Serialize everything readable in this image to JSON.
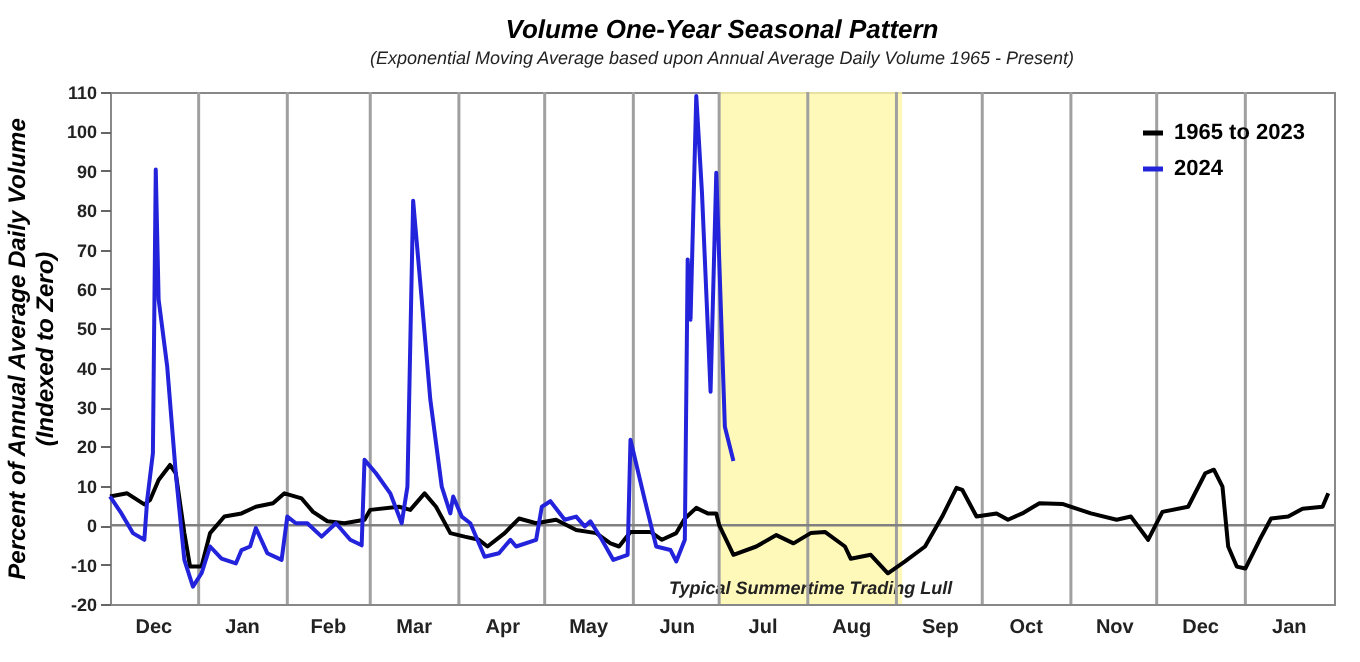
{
  "chart_data": {
    "type": "line",
    "title": "Volume One-Year Seasonal Pattern",
    "subtitle": "(Exponential Moving Average based upon Annual Average Daily Volume 1965 - Present)",
    "ylabel": "Percent of Annual Average Daily Volume\n(Indexed to Zero)",
    "series": [
      {
        "name": "1965 to 2023",
        "color": "#000000",
        "x": [
          "2023-12-01",
          "2023-12-07",
          "2023-12-13",
          "2023-12-15",
          "2023-12-18",
          "2023-12-22",
          "2023-12-24",
          "2023-12-27",
          "2023-12-29",
          "2024-01-02",
          "2024-01-05",
          "2024-01-10",
          "2024-01-16",
          "2024-01-21",
          "2024-01-27",
          "2024-01-31",
          "2024-02-06",
          "2024-02-10",
          "2024-02-15",
          "2024-02-21",
          "2024-02-28",
          "2024-03-01",
          "2024-03-11",
          "2024-03-15",
          "2024-03-20",
          "2024-03-24",
          "2024-03-29",
          "2024-04-03",
          "2024-04-08",
          "2024-04-11",
          "2024-04-17",
          "2024-04-22",
          "2024-04-28",
          "2024-05-05",
          "2024-05-12",
          "2024-05-19",
          "2024-05-24",
          "2024-05-27",
          "2024-05-31",
          "2024-06-07",
          "2024-06-11",
          "2024-06-16",
          "2024-06-19",
          "2024-06-23",
          "2024-06-27",
          "2024-06-30",
          "2024-07-01",
          "2024-07-06",
          "2024-07-14",
          "2024-07-21",
          "2024-07-27",
          "2024-08-02",
          "2024-08-07",
          "2024-08-14",
          "2024-08-16",
          "2024-08-23",
          "2024-08-29",
          "2024-09-04",
          "2024-09-11",
          "2024-09-17",
          "2024-09-22",
          "2024-09-24",
          "2024-09-29",
          "2024-10-06",
          "2024-10-10",
          "2024-10-15",
          "2024-10-21",
          "2024-10-29",
          "2024-11-08",
          "2024-11-17",
          "2024-11-22",
          "2024-11-28",
          "2024-12-03",
          "2024-12-12",
          "2024-12-18",
          "2024-12-21",
          "2024-12-24",
          "2024-12-26",
          "2024-12-29",
          "2025-01-01",
          "2025-01-06",
          "2025-01-10",
          "2025-01-16",
          "2025-01-21",
          "2025-01-28",
          "2025-01-30"
        ],
        "values": [
          7.3,
          8.1,
          5.3,
          6.4,
          11.5,
          15.3,
          13.2,
          -2,
          -10.5,
          -10.5,
          -2,
          2.2,
          3,
          4.7,
          5.6,
          8.1,
          6.8,
          3.4,
          1,
          0.5,
          1.4,
          3.9,
          4.7,
          3.9,
          8.1,
          4.7,
          -2,
          -2.9,
          -3.7,
          -5.4,
          -2,
          1.7,
          0.5,
          1.4,
          -1.2,
          -2,
          -4.6,
          -5.4,
          -1.7,
          -1.7,
          -3.7,
          -2,
          1.7,
          4.4,
          3,
          3,
          0,
          -7.5,
          -5.4,
          -2.5,
          -4.6,
          -2,
          -1.7,
          -5.4,
          -8.5,
          -7.5,
          -12.2,
          -9.2,
          -5.4,
          2.2,
          9.5,
          9,
          2.2,
          3,
          1.4,
          3,
          5.6,
          5.4,
          3,
          1.4,
          2.2,
          -3.7,
          3.4,
          4.7,
          13.2,
          14.1,
          9.8,
          -5.4,
          -10.5,
          -11,
          -3.7,
          1.7,
          2.2,
          4.2,
          4.7,
          8.1
        ]
      },
      {
        "name": "2024",
        "color": "#2323dc",
        "x": [
          "2023-12-01",
          "2023-12-05",
          "2023-12-09",
          "2023-12-13",
          "2023-12-14",
          "2023-12-16",
          "2023-12-17",
          "2023-12-18",
          "2023-12-21",
          "2023-12-24",
          "2023-12-27",
          "2023-12-30",
          "2024-01-02",
          "2024-01-05",
          "2024-01-09",
          "2024-01-14",
          "2024-01-16",
          "2024-01-19",
          "2024-01-21",
          "2024-01-25",
          "2024-01-30",
          "2024-02-01",
          "2024-02-04",
          "2024-02-08",
          "2024-02-13",
          "2024-02-18",
          "2024-02-23",
          "2024-02-27",
          "2024-02-28",
          "2024-03-03",
          "2024-03-08",
          "2024-03-12",
          "2024-03-14",
          "2024-03-16",
          "2024-03-19",
          "2024-03-22",
          "2024-03-26",
          "2024-03-29",
          "2024-03-30",
          "2024-04-02",
          "2024-04-05",
          "2024-04-10",
          "2024-04-15",
          "2024-04-19",
          "2024-04-21",
          "2024-04-28",
          "2024-04-30",
          "2024-05-03",
          "2024-05-08",
          "2024-05-12",
          "2024-05-15",
          "2024-05-17",
          "2024-05-21",
          "2024-05-25",
          "2024-05-30",
          "2024-05-31",
          "2024-06-05",
          "2024-06-09",
          "2024-06-14",
          "2024-06-16",
          "2024-06-19",
          "2024-06-20",
          "2024-06-21",
          "2024-06-23",
          "2024-06-25",
          "2024-06-28",
          "2024-06-30",
          "2024-07-03",
          "2024-07-06"
        ],
        "values": [
          7.3,
          3,
          -2,
          -3.7,
          6.4,
          18.3,
          90.3,
          57.3,
          40.3,
          13.2,
          -8.8,
          -15.6,
          -12.2,
          -5.4,
          -8.5,
          -9.7,
          -6.3,
          -5.4,
          -0.7,
          -7.1,
          -8.8,
          2.2,
          0.5,
          0.5,
          -2.9,
          0.5,
          -3.7,
          -5.1,
          16.6,
          13.2,
          8.1,
          0.5,
          9.8,
          82.4,
          57.3,
          31.9,
          9.8,
          3,
          7.3,
          2.2,
          0.5,
          -8,
          -7.1,
          -3.7,
          -5.4,
          -3.7,
          4.7,
          6.1,
          1.4,
          2.2,
          -0.3,
          1,
          -3.7,
          -8.8,
          -7.5,
          21.7,
          6.4,
          -5.4,
          -6.3,
          -9.2,
          -3.7,
          67.5,
          52.2,
          109,
          84.4,
          33.9,
          89.5,
          25,
          16.3
        ]
      }
    ],
    "xlim": [
      "2023-12-01",
      "2025-02-01"
    ],
    "xticks": [
      {
        "value": "2023-12-16",
        "label": "Dec"
      },
      {
        "value": "2024-01-01",
        "label": null
      },
      {
        "value": "2024-01-16",
        "label": "Jan"
      },
      {
        "value": "2024-02-01",
        "label": null
      },
      {
        "value": "2024-02-15",
        "label": "Feb"
      },
      {
        "value": "2024-03-01",
        "label": null
      },
      {
        "value": "2024-03-16",
        "label": "Mar"
      },
      {
        "value": "2024-04-01",
        "label": null
      },
      {
        "value": "2024-04-16",
        "label": "Apr"
      },
      {
        "value": "2024-05-01",
        "label": null
      },
      {
        "value": "2024-05-16",
        "label": "May"
      },
      {
        "value": "2024-06-01",
        "label": null
      },
      {
        "value": "2024-06-16",
        "label": "Jun"
      },
      {
        "value": "2024-07-01",
        "label": null
      },
      {
        "value": "2024-07-16",
        "label": "Jul"
      },
      {
        "value": "2024-08-01",
        "label": null
      },
      {
        "value": "2024-08-16",
        "label": "Aug"
      },
      {
        "value": "2024-09-01",
        "label": null
      },
      {
        "value": "2024-09-16",
        "label": "Sep"
      },
      {
        "value": "2024-10-01",
        "label": null
      },
      {
        "value": "2024-10-16",
        "label": "Oct"
      },
      {
        "value": "2024-11-01",
        "label": null
      },
      {
        "value": "2024-11-16",
        "label": "Nov"
      },
      {
        "value": "2024-12-01",
        "label": null
      },
      {
        "value": "2024-12-16",
        "label": "Dec"
      },
      {
        "value": "2025-01-01",
        "label": null
      },
      {
        "value": "2025-01-16",
        "label": "Jan"
      }
    ],
    "ylim": [
      -20,
      110
    ],
    "yticks": [
      -20,
      -10,
      0,
      10,
      20,
      30,
      40,
      50,
      60,
      70,
      80,
      90,
      100,
      110
    ],
    "grid": "x",
    "legend": "top right",
    "ref_lines": [
      {
        "axis": "y",
        "value": 0,
        "color": "#808080"
      }
    ],
    "bands": [
      {
        "axis": "x",
        "from": "2024-07-01",
        "to": "2024-09-03",
        "label": "Typical Summertime Trading Lull",
        "color": "#fff7a8"
      }
    ]
  }
}
